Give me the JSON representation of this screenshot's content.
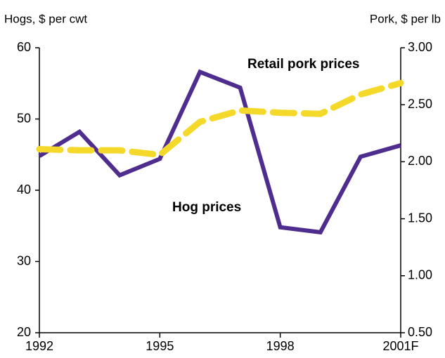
{
  "chart_data": {
    "type": "line",
    "y_label": "Hogs, $ per cwt",
    "y2_label": "Pork, $ per lb",
    "categories": [
      "1992",
      null,
      null,
      "1995",
      null,
      null,
      "1998",
      null,
      null,
      "2001F"
    ],
    "series": [
      {
        "name": "Hog prices",
        "color": "#4f2d8f",
        "values": [
          44.8,
          48.2,
          42.1,
          44.4,
          56.6,
          54.4,
          34.8,
          34.1,
          44.7,
          46.3
        ]
      },
      {
        "name": "Retail pork prices",
        "color": "#f5d92a",
        "axis": "y2",
        "dashed": true,
        "values": [
          2.11,
          2.1,
          2.1,
          2.06,
          2.35,
          2.45,
          2.43,
          2.42,
          2.59,
          2.69
        ]
      }
    ],
    "ylim": [
      20,
      60
    ],
    "yticks": [
      20,
      30,
      40,
      50,
      60
    ],
    "y2lim": [
      0.5,
      3
    ],
    "y2ticks": [
      {
        "value": 0.5,
        "label": "0.50"
      },
      {
        "value": 1,
        "label": "1.00"
      },
      {
        "value": 1.5,
        "label": "1.50"
      },
      {
        "value": 2,
        "label": "2.00"
      },
      {
        "value": 2.5,
        "label": "2.50"
      },
      {
        "value": 3,
        "label": "3.00"
      }
    ]
  }
}
